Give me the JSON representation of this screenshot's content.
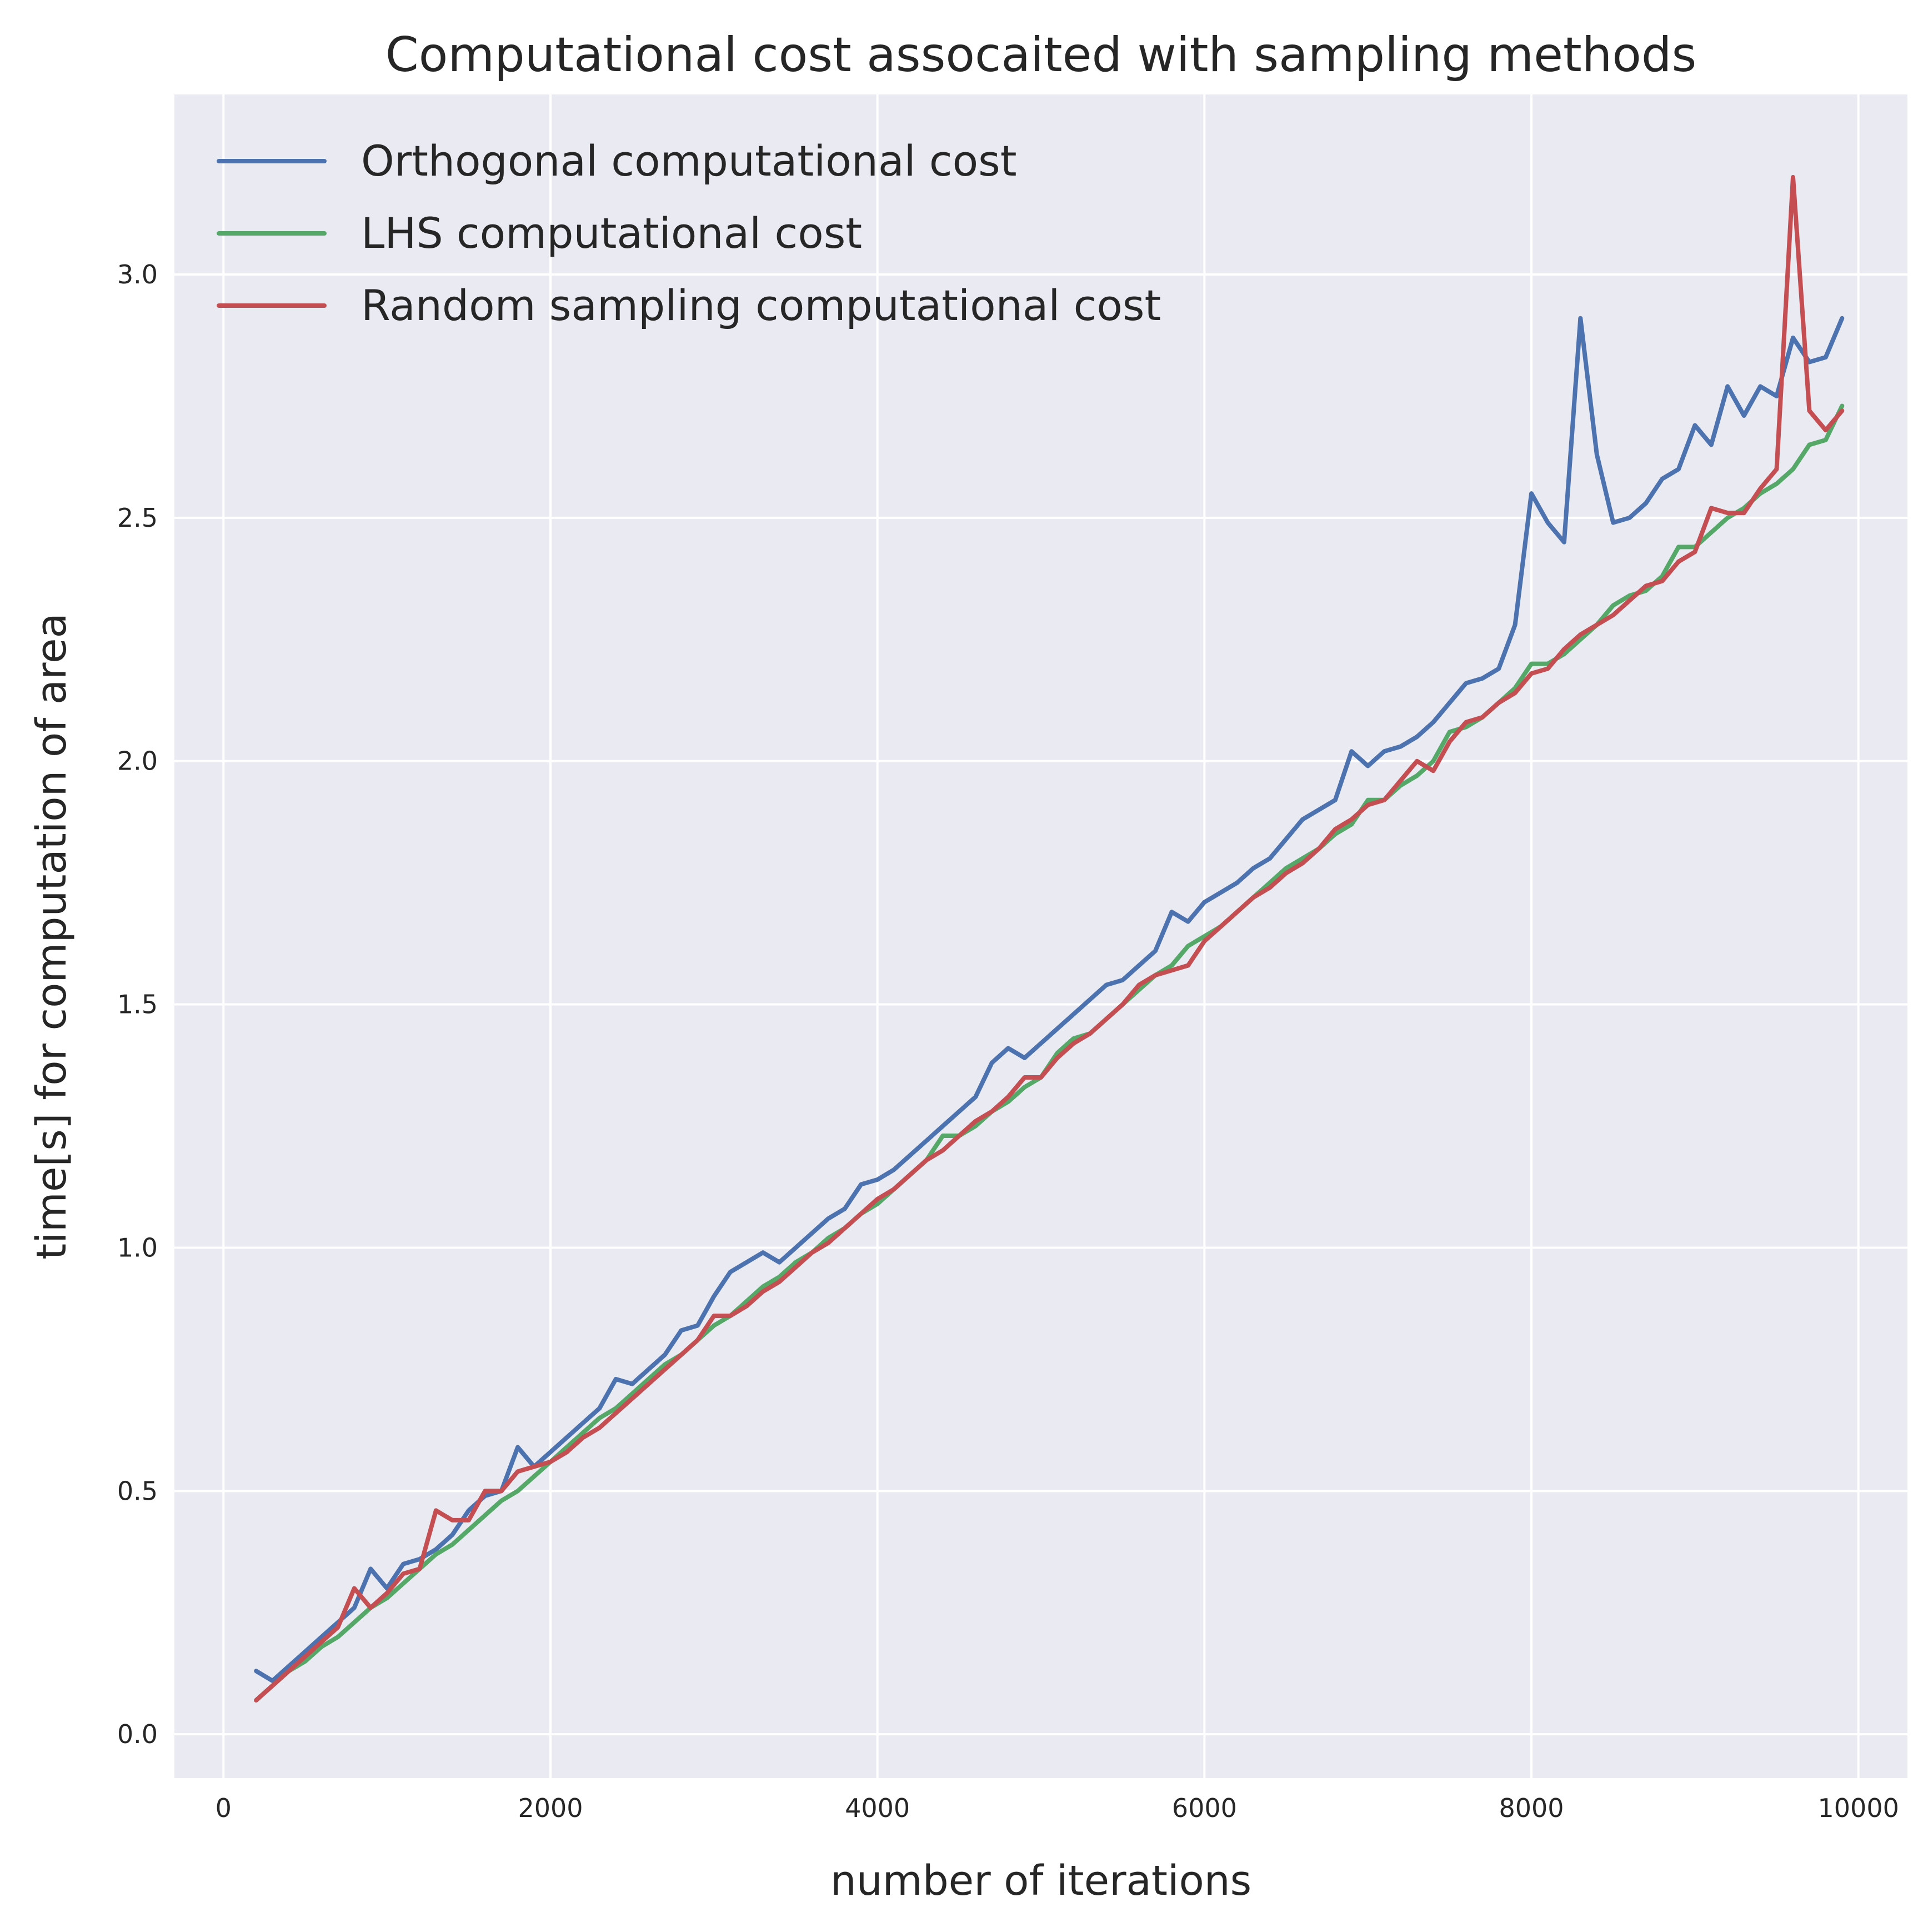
{
  "chart_data": {
    "type": "line",
    "title": "Computational cost assocaited with sampling methods",
    "xlabel": "number of iterations",
    "ylabel": "time[s] for computation of area",
    "xlim": [
      -300,
      10300
    ],
    "ylim": [
      -0.09,
      3.37
    ],
    "xticks": [
      0,
      2000,
      4000,
      6000,
      8000,
      10000
    ],
    "xtick_labels": [
      "0",
      "2000",
      "4000",
      "6000",
      "8000",
      "10000"
    ],
    "yticks": [
      0.0,
      0.5,
      1.0,
      1.5,
      2.0,
      2.5,
      3.0
    ],
    "ytick_labels": [
      "0.0",
      "0.5",
      "1.0",
      "1.5",
      "2.0",
      "2.5",
      "3.0"
    ],
    "grid": true,
    "legend_position": "top-left",
    "background_color": "#eaeaf2",
    "grid_color": "#ffffff",
    "x": [
      200,
      300,
      400,
      500,
      600,
      700,
      800,
      900,
      1000,
      1100,
      1200,
      1300,
      1400,
      1500,
      1600,
      1700,
      1800,
      1900,
      2000,
      2100,
      2200,
      2300,
      2400,
      2500,
      2600,
      2700,
      2800,
      2900,
      3000,
      3100,
      3200,
      3300,
      3400,
      3500,
      3600,
      3700,
      3800,
      3900,
      4000,
      4100,
      4200,
      4300,
      4400,
      4500,
      4600,
      4700,
      4800,
      4900,
      5000,
      5100,
      5200,
      5300,
      5400,
      5500,
      5600,
      5700,
      5800,
      5900,
      6000,
      6100,
      6200,
      6300,
      6400,
      6500,
      6600,
      6700,
      6800,
      6900,
      7000,
      7100,
      7200,
      7300,
      7400,
      7500,
      7600,
      7700,
      7800,
      7900,
      8000,
      8100,
      8200,
      8300,
      8400,
      8500,
      8600,
      8700,
      8800,
      8900,
      9000,
      9100,
      9200,
      9300,
      9400,
      9500,
      9600,
      9700,
      9800,
      9900
    ],
    "series": [
      {
        "name": "Orthogonal computational cost",
        "color": "#4c72b0",
        "values": [
          0.13,
          0.11,
          0.14,
          0.17,
          0.2,
          0.23,
          0.26,
          0.34,
          0.3,
          0.35,
          0.36,
          0.38,
          0.41,
          0.46,
          0.49,
          0.5,
          0.59,
          0.55,
          0.58,
          0.61,
          0.64,
          0.67,
          0.73,
          0.72,
          0.75,
          0.78,
          0.83,
          0.84,
          0.9,
          0.95,
          0.97,
          0.99,
          0.97,
          1.0,
          1.03,
          1.06,
          1.08,
          1.13,
          1.14,
          1.16,
          1.19,
          1.22,
          1.25,
          1.28,
          1.31,
          1.38,
          1.41,
          1.39,
          1.42,
          1.45,
          1.48,
          1.51,
          1.54,
          1.55,
          1.58,
          1.61,
          1.69,
          1.67,
          1.71,
          1.73,
          1.75,
          1.78,
          1.8,
          1.84,
          1.88,
          1.9,
          1.92,
          2.02,
          1.99,
          2.02,
          2.03,
          2.05,
          2.08,
          2.12,
          2.16,
          2.17,
          2.19,
          2.28,
          2.55,
          2.49,
          2.45,
          2.91,
          2.63,
          2.49,
          2.5,
          2.53,
          2.58,
          2.6,
          2.69,
          2.65,
          2.77,
          2.71,
          2.77,
          2.75,
          2.87,
          2.82,
          2.83,
          2.91
        ]
      },
      {
        "name": "LHS computational cost",
        "color": "#55a868",
        "values": [
          0.07,
          0.1,
          0.13,
          0.15,
          0.18,
          0.2,
          0.23,
          0.26,
          0.28,
          0.31,
          0.34,
          0.37,
          0.39,
          0.42,
          0.45,
          0.48,
          0.5,
          0.53,
          0.56,
          0.59,
          0.62,
          0.65,
          0.67,
          0.7,
          0.73,
          0.76,
          0.78,
          0.81,
          0.84,
          0.86,
          0.89,
          0.92,
          0.94,
          0.97,
          0.99,
          1.02,
          1.04,
          1.07,
          1.09,
          1.12,
          1.15,
          1.18,
          1.23,
          1.23,
          1.25,
          1.28,
          1.3,
          1.33,
          1.35,
          1.4,
          1.43,
          1.44,
          1.47,
          1.5,
          1.53,
          1.56,
          1.58,
          1.62,
          1.64,
          1.66,
          1.69,
          1.72,
          1.75,
          1.78,
          1.8,
          1.82,
          1.85,
          1.87,
          1.92,
          1.92,
          1.95,
          1.97,
          2.0,
          2.06,
          2.07,
          2.09,
          2.12,
          2.15,
          2.2,
          2.2,
          2.22,
          2.25,
          2.28,
          2.32,
          2.34,
          2.35,
          2.38,
          2.44,
          2.44,
          2.47,
          2.5,
          2.52,
          2.55,
          2.57,
          2.6,
          2.65,
          2.66,
          2.73
        ]
      },
      {
        "name": "Random sampling computational cost",
        "color": "#c44e52",
        "values": [
          0.07,
          0.1,
          0.13,
          0.16,
          0.19,
          0.22,
          0.3,
          0.26,
          0.29,
          0.33,
          0.34,
          0.46,
          0.44,
          0.44,
          0.5,
          0.5,
          0.54,
          0.55,
          0.56,
          0.58,
          0.61,
          0.63,
          0.66,
          0.69,
          0.72,
          0.75,
          0.78,
          0.81,
          0.86,
          0.86,
          0.88,
          0.91,
          0.93,
          0.96,
          0.99,
          1.01,
          1.04,
          1.07,
          1.1,
          1.12,
          1.15,
          1.18,
          1.2,
          1.23,
          1.26,
          1.28,
          1.31,
          1.35,
          1.35,
          1.39,
          1.42,
          1.44,
          1.47,
          1.5,
          1.54,
          1.56,
          1.57,
          1.58,
          1.63,
          1.66,
          1.69,
          1.72,
          1.74,
          1.77,
          1.79,
          1.82,
          1.86,
          1.88,
          1.91,
          1.92,
          1.96,
          2.0,
          1.98,
          2.04,
          2.08,
          2.09,
          2.12,
          2.14,
          2.18,
          2.19,
          2.23,
          2.26,
          2.28,
          2.3,
          2.33,
          2.36,
          2.37,
          2.41,
          2.43,
          2.52,
          2.51,
          2.51,
          2.56,
          2.6,
          3.2,
          2.72,
          2.68,
          2.72
        ]
      }
    ]
  }
}
